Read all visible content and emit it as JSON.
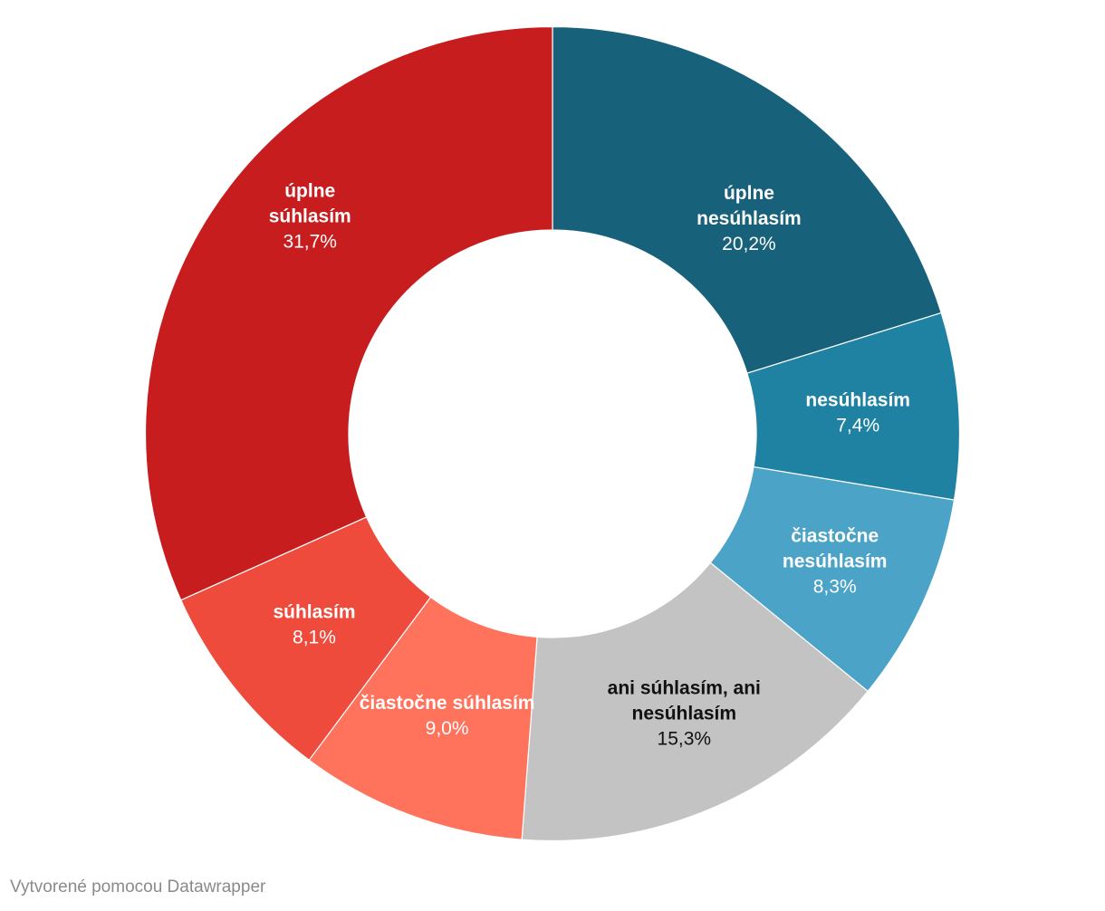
{
  "footer": {
    "credit": "Vytvorené pomocou Datawrapper"
  },
  "chart_data": {
    "type": "pie",
    "variant": "donut",
    "categories": [
      "úplne nesúhlasím",
      "nesúhlasím",
      "čiastočne nesúhlasím",
      "ani súhlasím, ani nesúhlasím",
      "čiastočne súhlasím",
      "súhlasím",
      "úplne súhlasím"
    ],
    "values": [
      20.2,
      7.4,
      8.3,
      15.3,
      9.0,
      8.1,
      31.7
    ],
    "value_labels": [
      "20,2%",
      "7,4%",
      "8,3%",
      "15,3%",
      "9,0%",
      "8,1%",
      "31,7%"
    ],
    "colors": [
      "#18617b",
      "#1f82a2",
      "#4ba3c7",
      "#c3c3c3",
      "#ff725c",
      "#ee4b3d",
      "#c71d1e"
    ],
    "label_colors": [
      "#ffffff",
      "#ffffff",
      "#ffffff",
      "#111111",
      "#ffffff",
      "#ffffff",
      "#ffffff"
    ],
    "start": "top, clockwise",
    "legend": "none",
    "unit": "%"
  }
}
